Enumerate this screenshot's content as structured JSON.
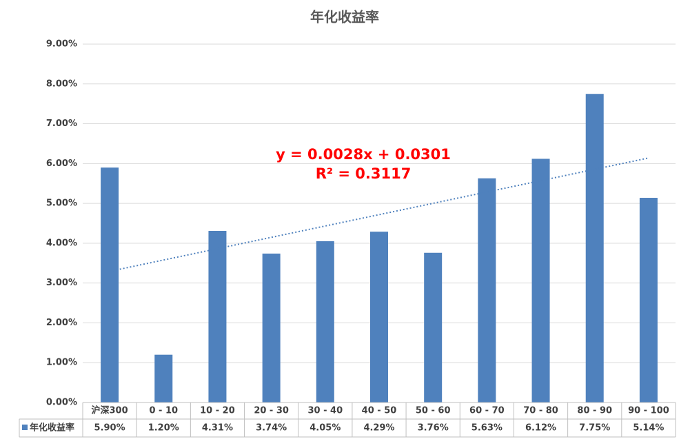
{
  "chart_data": {
    "type": "bar",
    "title": "年化收益率",
    "categories": [
      "沪深300",
      "0 - 10",
      "10 - 20",
      "20 - 30",
      "30 - 40",
      "40 - 50",
      "50 - 60",
      "60 - 70",
      "70 - 80",
      "80 - 90",
      "90 - 100"
    ],
    "series": [
      {
        "name": "年化收益率",
        "color": "#4f81bd",
        "values": [
          5.9,
          1.2,
          4.31,
          3.74,
          4.05,
          4.29,
          3.76,
          5.63,
          6.12,
          7.75,
          5.14
        ],
        "value_labels": [
          "5.90%",
          "1.20%",
          "4.31%",
          "3.74%",
          "4.05%",
          "4.29%",
          "3.76%",
          "5.63%",
          "6.12%",
          "7.75%",
          "5.14%"
        ]
      }
    ],
    "ylim": [
      0,
      9
    ],
    "yticks": [
      {
        "value": 0,
        "label": "0.00%"
      },
      {
        "value": 1,
        "label": "1.00%"
      },
      {
        "value": 2,
        "label": "2.00%"
      },
      {
        "value": 3,
        "label": "3.00%"
      },
      {
        "value": 4,
        "label": "4.00%"
      },
      {
        "value": 5,
        "label": "5.00%"
      },
      {
        "value": 6,
        "label": "6.00%"
      },
      {
        "value": 7,
        "label": "7.00%"
      },
      {
        "value": 8,
        "label": "8.00%"
      },
      {
        "value": 9,
        "label": "9.00%"
      }
    ],
    "grid": true,
    "trendline": {
      "type": "linear",
      "color": "#4f81bd",
      "equation": "y = 0.0028x + 0.0301",
      "r_squared": "R² = 0.3117",
      "label_color": "#ff0000"
    }
  }
}
